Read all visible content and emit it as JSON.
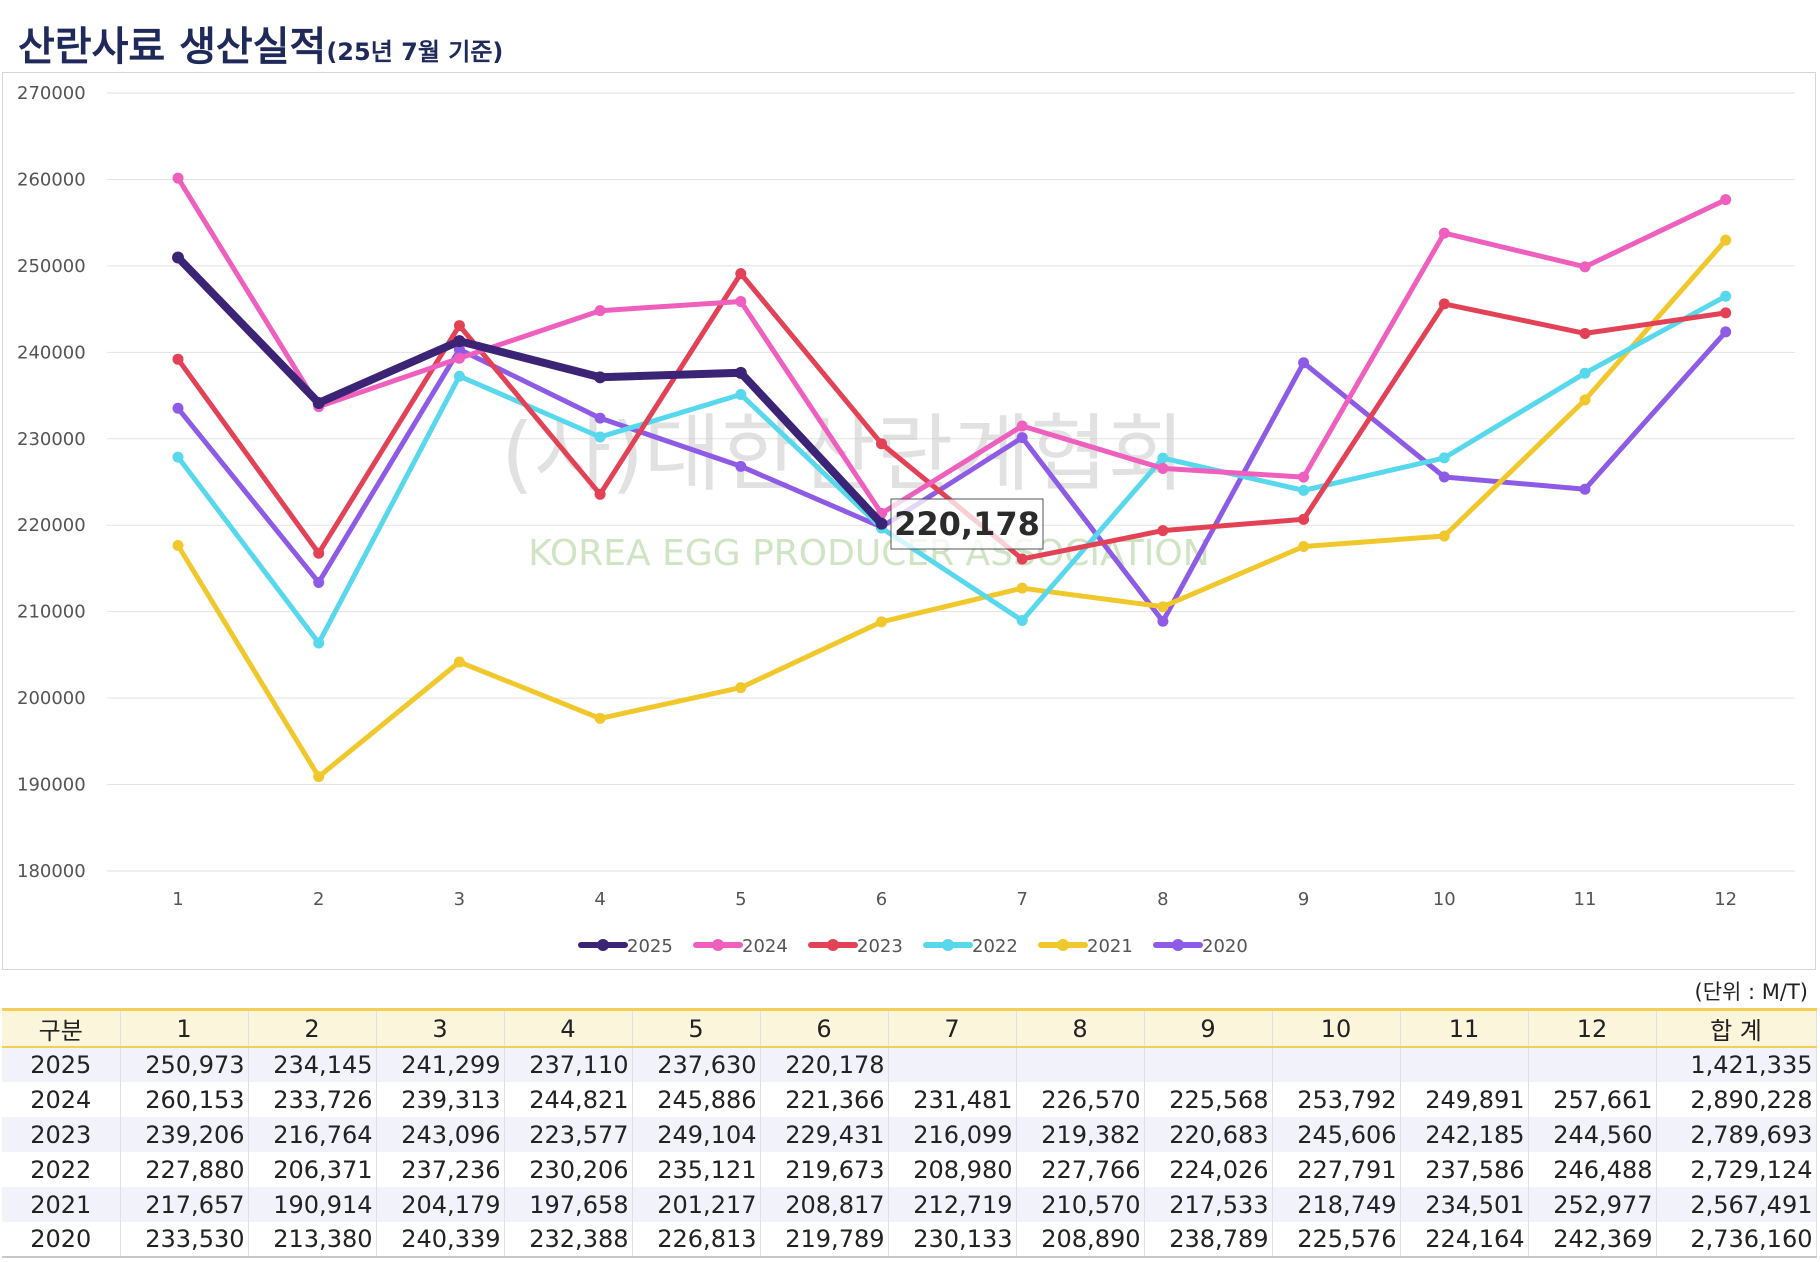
{
  "page": {
    "title": "산란사료 생산실적",
    "subtitle": "(25년 7월 기준)",
    "watermark_ko": "(사)대한산란계협회",
    "watermark_en": "KOREA EGG PRODUCER ASSOCIATION",
    "tooltip_value": "220,178",
    "unit": "(단위 : M/T)"
  },
  "chart_data": {
    "type": "line",
    "title": "산란사료 생산실적",
    "x": [
      1,
      2,
      3,
      4,
      5,
      6,
      7,
      8,
      9,
      10,
      11,
      12
    ],
    "ylim": [
      180000,
      270000
    ],
    "yticks": [
      180000,
      190000,
      200000,
      210000,
      220000,
      230000,
      240000,
      250000,
      260000,
      270000
    ],
    "grid": true,
    "legend_position": "bottom",
    "highlight": {
      "series": "2025",
      "x": 6,
      "label": "220,178"
    },
    "series": [
      {
        "name": "2025",
        "color": "#3b2475",
        "width": 8,
        "values": [
          250973,
          234145,
          241299,
          237110,
          237630,
          220178,
          null,
          null,
          null,
          null,
          null,
          null
        ]
      },
      {
        "name": "2024",
        "color": "#ef5fbd",
        "width": 5,
        "values": [
          260153,
          233726,
          239313,
          244821,
          245886,
          221366,
          231481,
          226570,
          225568,
          253792,
          249891,
          257661
        ]
      },
      {
        "name": "2023",
        "color": "#e34256",
        "width": 5,
        "values": [
          239206,
          216764,
          243096,
          223577,
          249104,
          229431,
          216099,
          219382,
          220683,
          245606,
          242185,
          244560
        ]
      },
      {
        "name": "2022",
        "color": "#58d8ec",
        "width": 5,
        "values": [
          227880,
          206371,
          237236,
          230206,
          235121,
          219673,
          208980,
          227766,
          224026,
          227791,
          237586,
          246488
        ]
      },
      {
        "name": "2021",
        "color": "#f1c82c",
        "width": 5,
        "values": [
          217657,
          190914,
          204179,
          197658,
          201217,
          208817,
          212719,
          210570,
          217533,
          218749,
          234501,
          252977
        ]
      },
      {
        "name": "2020",
        "color": "#8e5be6",
        "width": 5,
        "values": [
          233530,
          213380,
          240339,
          232388,
          226813,
          219789,
          230133,
          208890,
          238789,
          225576,
          224164,
          242369
        ]
      }
    ]
  },
  "table": {
    "headers": [
      "구분",
      "1",
      "2",
      "3",
      "4",
      "5",
      "6",
      "7",
      "8",
      "9",
      "10",
      "11",
      "12",
      "합 계"
    ],
    "rows": [
      [
        "2025",
        "250,973",
        "234,145",
        "241,299",
        "237,110",
        "237,630",
        "220,178",
        "",
        "",
        "",
        "",
        "",
        "",
        "1,421,335"
      ],
      [
        "2024",
        "260,153",
        "233,726",
        "239,313",
        "244,821",
        "245,886",
        "221,366",
        "231,481",
        "226,570",
        "225,568",
        "253,792",
        "249,891",
        "257,661",
        "2,890,228"
      ],
      [
        "2023",
        "239,206",
        "216,764",
        "243,096",
        "223,577",
        "249,104",
        "229,431",
        "216,099",
        "219,382",
        "220,683",
        "245,606",
        "242,185",
        "244,560",
        "2,789,693"
      ],
      [
        "2022",
        "227,880",
        "206,371",
        "237,236",
        "230,206",
        "235,121",
        "219,673",
        "208,980",
        "227,766",
        "224,026",
        "227,791",
        "237,586",
        "246,488",
        "2,729,124"
      ],
      [
        "2021",
        "217,657",
        "190,914",
        "204,179",
        "197,658",
        "201,217",
        "208,817",
        "212,719",
        "210,570",
        "217,533",
        "218,749",
        "234,501",
        "252,977",
        "2,567,491"
      ],
      [
        "2020",
        "233,530",
        "213,380",
        "240,339",
        "232,388",
        "226,813",
        "219,789",
        "230,133",
        "208,890",
        "238,789",
        "225,576",
        "224,164",
        "242,369",
        "2,736,160"
      ]
    ]
  }
}
